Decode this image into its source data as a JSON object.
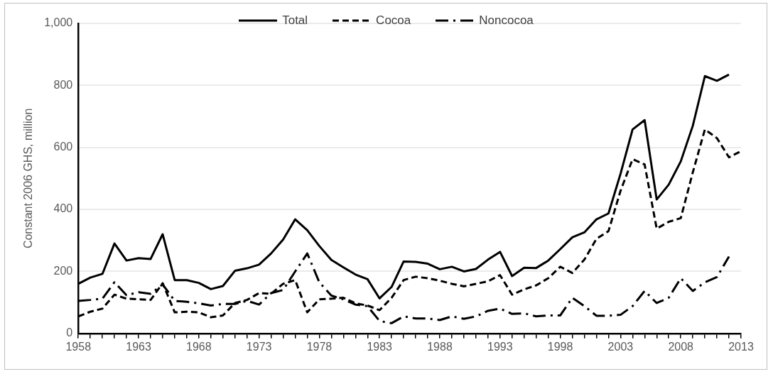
{
  "chart_data": {
    "type": "line",
    "ylabel": "Constant 2006 GHS, million",
    "legend": "top",
    "grid": "y",
    "marker": "none",
    "xlim": [
      1958,
      2013
    ],
    "ylim": [
      0,
      1000
    ],
    "yticks": [
      0,
      {
        "value": 200,
        "label": "200"
      },
      {
        "value": 400,
        "label": "400"
      },
      {
        "value": 600,
        "label": "600"
      },
      {
        "value": 800,
        "label": "800"
      },
      {
        "value": 1000,
        "label": "1,000"
      }
    ],
    "xticks": [
      1958,
      {
        "value": 1959,
        "label": null
      },
      {
        "value": 1960,
        "label": null
      },
      {
        "value": 1961,
        "label": null
      },
      {
        "value": 1962,
        "label": null
      },
      1963,
      {
        "value": 1964,
        "label": null
      },
      {
        "value": 1965,
        "label": null
      },
      {
        "value": 1966,
        "label": null
      },
      {
        "value": 1967,
        "label": null
      },
      1968,
      {
        "value": 1969,
        "label": null
      },
      {
        "value": 1970,
        "label": null
      },
      {
        "value": 1971,
        "label": null
      },
      {
        "value": 1972,
        "label": null
      },
      1973,
      {
        "value": 1974,
        "label": null
      },
      {
        "value": 1975,
        "label": null
      },
      {
        "value": 1976,
        "label": null
      },
      {
        "value": 1977,
        "label": null
      },
      1978,
      {
        "value": 1979,
        "label": null
      },
      {
        "value": 1980,
        "label": null
      },
      {
        "value": 1981,
        "label": null
      },
      {
        "value": 1982,
        "label": null
      },
      1983,
      {
        "value": 1984,
        "label": null
      },
      {
        "value": 1985,
        "label": null
      },
      {
        "value": 1986,
        "label": null
      },
      {
        "value": 1987,
        "label": null
      },
      1988,
      {
        "value": 1989,
        "label": null
      },
      {
        "value": 1990,
        "label": null
      },
      {
        "value": 1991,
        "label": null
      },
      {
        "value": 1992,
        "label": null
      },
      1993,
      {
        "value": 1994,
        "label": null
      },
      {
        "value": 1995,
        "label": null
      },
      {
        "value": 1996,
        "label": null
      },
      {
        "value": 1997,
        "label": null
      },
      1998,
      {
        "value": 1999,
        "label": null
      },
      {
        "value": 2000,
        "label": null
      },
      {
        "value": 2001,
        "label": null
      },
      {
        "value": 2002,
        "label": null
      },
      2003,
      {
        "value": 2004,
        "label": null
      },
      {
        "value": 2005,
        "label": null
      },
      {
        "value": 2006,
        "label": null
      },
      {
        "value": 2007,
        "label": null
      },
      2008,
      {
        "value": 2009,
        "label": null
      },
      {
        "value": 2010,
        "label": null
      },
      {
        "value": 2011,
        "label": null
      },
      {
        "value": 2012,
        "label": null
      },
      2013
    ],
    "x": [
      1958,
      1959,
      1960,
      1961,
      1962,
      1963,
      1964,
      1965,
      1966,
      1967,
      1968,
      1969,
      1970,
      1971,
      1972,
      1973,
      1974,
      1975,
      1976,
      1977,
      1978,
      1979,
      1980,
      1981,
      1982,
      1983,
      1984,
      1985,
      1986,
      1987,
      1988,
      1989,
      1990,
      1991,
      1992,
      1993,
      1994,
      1995,
      1996,
      1997,
      1998,
      1999,
      2000,
      2001,
      2002,
      2003,
      2004,
      2005,
      2006,
      2007,
      2008,
      2009,
      2010,
      2011,
      2012,
      2013
    ],
    "series": [
      {
        "name": "Total",
        "color": "#000000",
        "line_style": "solid",
        "values": [
          160,
          180,
          192,
          290,
          235,
          243,
          240,
          320,
          172,
          172,
          163,
          143,
          153,
          202,
          210,
          222,
          258,
          303,
          368,
          333,
          282,
          237,
          213,
          190,
          175,
          113,
          150,
          232,
          231,
          225,
          207,
          215,
          200,
          208,
          238,
          263,
          185,
          212,
          211,
          235,
          272,
          310,
          326,
          368,
          387,
          515,
          658,
          688,
          432,
          480,
          555,
          670,
          830,
          815,
          835,
          null
        ]
      },
      {
        "name": "Cocoa",
        "color": "#000000",
        "line_style": "dashed",
        "values": [
          55,
          70,
          80,
          125,
          112,
          110,
          108,
          162,
          68,
          70,
          68,
          52,
          58,
          98,
          108,
          130,
          128,
          160,
          172,
          68,
          110,
          112,
          115,
          97,
          90,
          75,
          115,
          172,
          183,
          178,
          170,
          160,
          152,
          160,
          168,
          188,
          125,
          142,
          155,
          178,
          215,
          195,
          238,
          305,
          330,
          460,
          562,
          545,
          338,
          360,
          372,
          520,
          658,
          630,
          568,
          588
        ]
      },
      {
        "name": "Noncocoa",
        "color": "#000000",
        "line_style": "dashdot",
        "values": [
          105,
          108,
          112,
          165,
          123,
          133,
          128,
          158,
          105,
          102,
          97,
          90,
          95,
          95,
          105,
          93,
          130,
          140,
          200,
          258,
          165,
          122,
          110,
          93,
          88,
          40,
          33,
          55,
          48,
          48,
          43,
          55,
          47,
          55,
          73,
          80,
          63,
          65,
          55,
          58,
          58,
          115,
          88,
          57,
          57,
          60,
          88,
          137,
          98,
          115,
          178,
          137,
          165,
          182,
          248,
          null
        ]
      }
    ]
  }
}
